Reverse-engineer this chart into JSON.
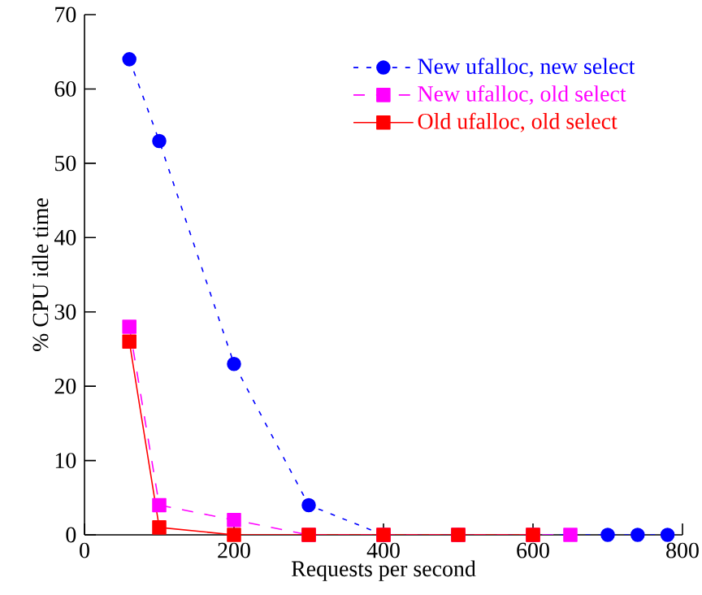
{
  "chart_data": {
    "type": "line",
    "xlabel": "Requests per second",
    "ylabel": "% CPU idle time",
    "xlim": [
      0,
      800
    ],
    "ylim": [
      0,
      70
    ],
    "xticks": [
      0,
      200,
      400,
      600,
      800
    ],
    "yticks": [
      0,
      10,
      20,
      30,
      40,
      50,
      60,
      70
    ],
    "legend": "top right",
    "grid": false,
    "series": [
      {
        "name": "New ufalloc, new select",
        "color": "#0000ff",
        "marker": "circle",
        "line_style": "dotted",
        "x": [
          60,
          100,
          200,
          300,
          400,
          500,
          600,
          700,
          740,
          780
        ],
        "values": [
          64,
          53,
          23,
          4,
          0,
          0,
          0,
          0,
          0,
          0
        ]
      },
      {
        "name": "New ufalloc, old select",
        "color": "#ff00ff",
        "marker": "square",
        "line_style": "dashed",
        "x": [
          60,
          100,
          200,
          300,
          400,
          500,
          600,
          650
        ],
        "values": [
          28,
          4,
          2,
          0,
          0,
          0,
          0,
          0
        ]
      },
      {
        "name": "Old ufalloc, old select",
        "color": "#ff0000",
        "marker": "square",
        "line_style": "solid",
        "x": [
          60,
          100,
          200,
          300,
          400,
          500,
          600
        ],
        "values": [
          26,
          1,
          0,
          0,
          0,
          0,
          0
        ]
      }
    ]
  }
}
